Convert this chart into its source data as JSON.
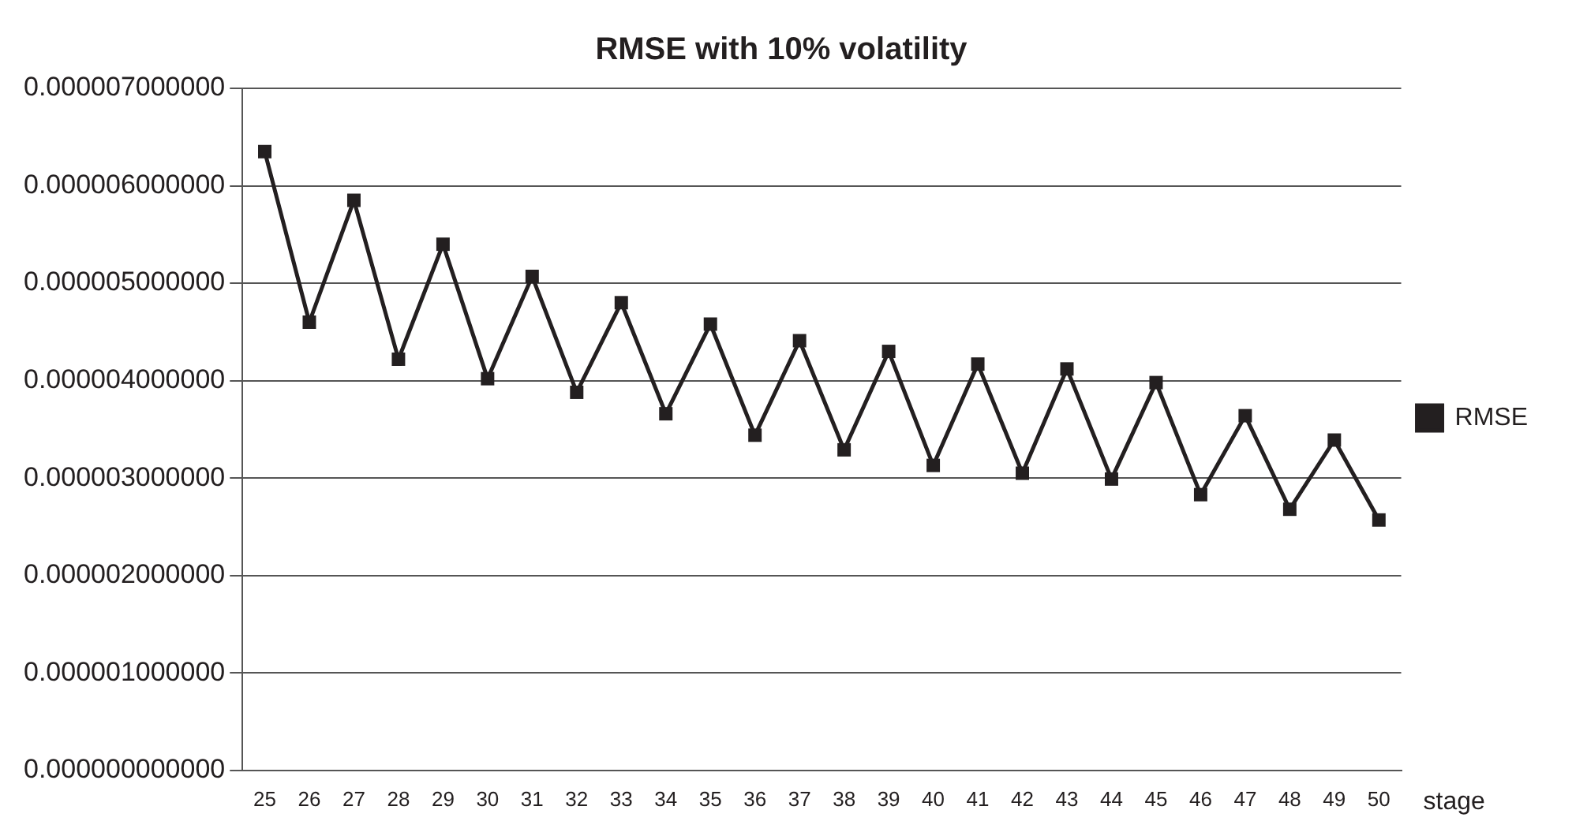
{
  "chart_data": {
    "type": "line",
    "title": "RMSE with 10% volatility",
    "xlabel": "stage",
    "categories": [
      "25",
      "26",
      "27",
      "28",
      "29",
      "30",
      "31",
      "32",
      "33",
      "34",
      "35",
      "36",
      "37",
      "38",
      "39",
      "40",
      "41",
      "42",
      "43",
      "44",
      "45",
      "46",
      "47",
      "48",
      "49",
      "50"
    ],
    "series": [
      {
        "name": "RMSE",
        "color": "#231f20",
        "values": [
          6.35e-06,
          4.6e-06,
          5.85e-06,
          4.22e-06,
          5.4e-06,
          4.02e-06,
          5.07e-06,
          3.88e-06,
          4.8e-06,
          3.66e-06,
          4.58e-06,
          3.44e-06,
          4.41e-06,
          3.29e-06,
          4.3e-06,
          3.13e-06,
          4.17e-06,
          3.05e-06,
          4.12e-06,
          2.99e-06,
          3.98e-06,
          2.83e-06,
          3.64e-06,
          2.68e-06,
          3.39e-06,
          2.57e-06
        ]
      }
    ],
    "ylim": [
      0,
      7e-06
    ],
    "yticks": [
      {
        "value": 0,
        "label": "0.000000000000"
      },
      {
        "value": 1e-06,
        "label": "0.000001000000"
      },
      {
        "value": 2e-06,
        "label": "0.000002000000"
      },
      {
        "value": 3e-06,
        "label": "0.000003000000"
      },
      {
        "value": 4e-06,
        "label": "0.000004000000"
      },
      {
        "value": 5e-06,
        "label": "0.000005000000"
      },
      {
        "value": 6e-06,
        "label": "0.000006000000"
      },
      {
        "value": 7e-06,
        "label": "0.000007000000"
      }
    ],
    "grid": "y",
    "legend": "right",
    "marker": "square",
    "line_style": "solid"
  }
}
